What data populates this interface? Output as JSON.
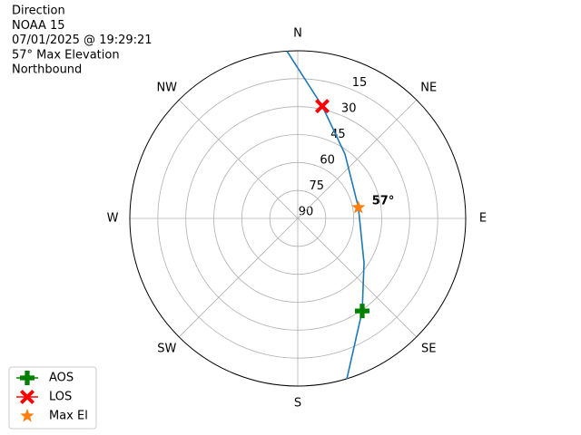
{
  "chart_data": {
    "type": "polar",
    "title_lines": [
      "Direction",
      "NOAA 15",
      "07/01/2025 @ 19:29:21",
      "57° Max Elevation",
      "Northbound"
    ],
    "rlim": [
      90,
      0
    ],
    "rticks": [
      15,
      30,
      45,
      60,
      75,
      90
    ],
    "theta_ticks": [
      {
        "value": 0,
        "label": "N"
      },
      {
        "value": 45,
        "label": "NE"
      },
      {
        "value": 90,
        "label": "E"
      },
      {
        "value": 135,
        "label": "SE"
      },
      {
        "value": 180,
        "label": "S"
      },
      {
        "value": 225,
        "label": "SW"
      },
      {
        "value": 270,
        "label": "W"
      },
      {
        "value": 315,
        "label": "NW"
      }
    ],
    "grid": true,
    "track": {
      "color": "#1f77b4",
      "az": [
        356.3,
        12.3,
        36.2,
        79.8,
        123.9,
        145.2,
        163
      ],
      "el": [
        0,
        28.3,
        47.2,
        57,
        47.2,
        29.5,
        0
      ]
    },
    "series": [
      {
        "name": "AOS",
        "color": "#008000",
        "marker": "plus",
        "az": [
          145.2
        ],
        "el": [
          29.5
        ]
      },
      {
        "name": "LOS",
        "color": "#ff0000",
        "marker": "x",
        "az": [
          12.3
        ],
        "el": [
          28.3
        ]
      },
      {
        "name": "Max El",
        "color": "#ff7f0e",
        "marker": "star",
        "az": [
          79.8
        ],
        "el": [
          57
        ]
      }
    ],
    "annotation": {
      "text": "57°",
      "az": 79.8,
      "el": 57
    },
    "legend": "lower left"
  }
}
